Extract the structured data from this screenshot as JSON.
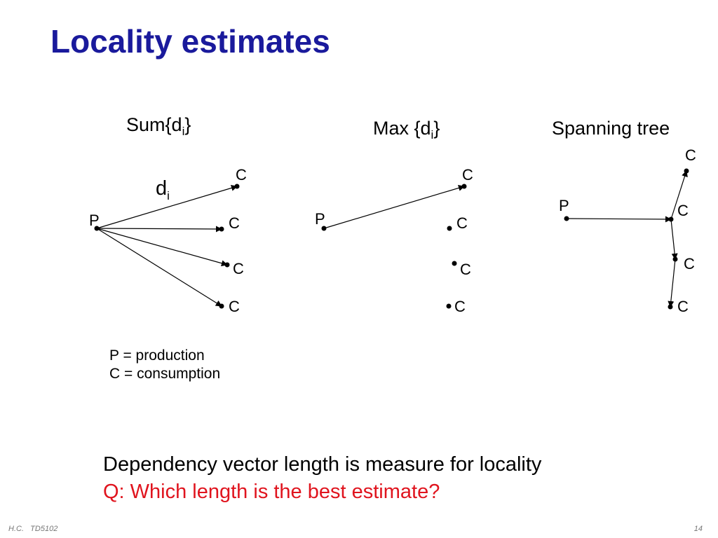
{
  "slide": {
    "title": "Locality estimates",
    "footer_author": "H.C.",
    "footer_course": "TD5102",
    "page_number": "14"
  },
  "panels": [
    {
      "label_main": "Sum{d",
      "label_sub": "i",
      "label_end": "}"
    },
    {
      "label_main": "Max {d",
      "label_sub": "i",
      "label_end": "}"
    },
    {
      "label_main": "Spanning tree"
    }
  ],
  "diagram": {
    "edge_label_main": "d",
    "edge_label_sub": "i",
    "p": "P",
    "c": "C"
  },
  "legend": {
    "line1": "P = production",
    "line2": "C = consumption"
  },
  "statement": {
    "line1": "Dependency vector length is measure for locality",
    "line2": "Q: Which length is the best estimate?"
  }
}
